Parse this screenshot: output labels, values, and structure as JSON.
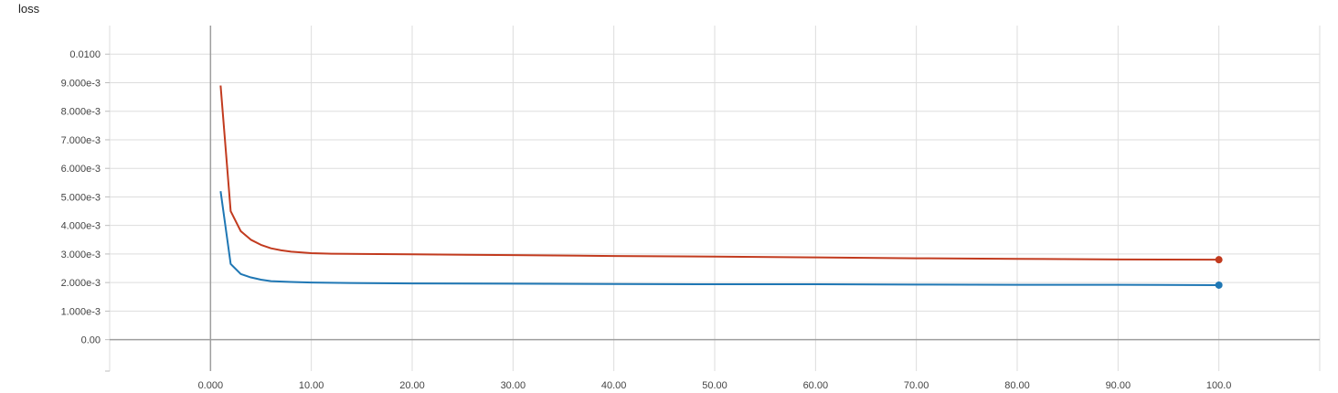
{
  "chart_data": {
    "type": "line",
    "title": "loss",
    "xlabel": "",
    "ylabel": "",
    "grid": true,
    "xlim": [
      -10,
      110
    ],
    "ylim": [
      -0.0011,
      0.011
    ],
    "x_ticks": [
      {
        "value": 0,
        "label": "0.000"
      },
      {
        "value": 10,
        "label": "10.00"
      },
      {
        "value": 20,
        "label": "20.00"
      },
      {
        "value": 30,
        "label": "30.00"
      },
      {
        "value": 40,
        "label": "40.00"
      },
      {
        "value": 50,
        "label": "50.00"
      },
      {
        "value": 60,
        "label": "60.00"
      },
      {
        "value": 70,
        "label": "70.00"
      },
      {
        "value": 80,
        "label": "80.00"
      },
      {
        "value": 90,
        "label": "90.00"
      },
      {
        "value": 100,
        "label": "100.0"
      }
    ],
    "y_ticks": [
      {
        "value": 0.0,
        "label": "0.00"
      },
      {
        "value": 0.001,
        "label": "1.000e-3"
      },
      {
        "value": 0.002,
        "label": "2.000e-3"
      },
      {
        "value": 0.003,
        "label": "3.000e-3"
      },
      {
        "value": 0.004,
        "label": "4.000e-3"
      },
      {
        "value": 0.005,
        "label": "5.000e-3"
      },
      {
        "value": 0.006,
        "label": "6.000e-3"
      },
      {
        "value": 0.007,
        "label": "7.000e-3"
      },
      {
        "value": 0.008,
        "label": "8.000e-3"
      },
      {
        "value": 0.009,
        "label": "9.000e-3"
      },
      {
        "value": 0.01,
        "label": "0.0100"
      }
    ],
    "series": [
      {
        "color": "#c23b1f",
        "points": [
          [
            1,
            0.0089
          ],
          [
            2,
            0.0045
          ],
          [
            3,
            0.0038
          ],
          [
            4,
            0.0035
          ],
          [
            5,
            0.00332
          ],
          [
            6,
            0.0032
          ],
          [
            7,
            0.00313
          ],
          [
            8,
            0.00308
          ],
          [
            10,
            0.00303
          ],
          [
            12,
            0.00301
          ],
          [
            15,
            0.003
          ],
          [
            20,
            0.00299
          ],
          [
            30,
            0.00296
          ],
          [
            40,
            0.00293
          ],
          [
            50,
            0.00291
          ],
          [
            60,
            0.00288
          ],
          [
            70,
            0.00285
          ],
          [
            80,
            0.00283
          ],
          [
            90,
            0.00281
          ],
          [
            100,
            0.0028
          ]
        ]
      },
      {
        "color": "#1f77b4",
        "points": [
          [
            1,
            0.0052
          ],
          [
            2,
            0.00265
          ],
          [
            3,
            0.0023
          ],
          [
            4,
            0.00218
          ],
          [
            5,
            0.0021
          ],
          [
            6,
            0.00205
          ],
          [
            8,
            0.00202
          ],
          [
            10,
            0.002
          ],
          [
            15,
            0.00198
          ],
          [
            20,
            0.00197
          ],
          [
            30,
            0.00196
          ],
          [
            40,
            0.00195
          ],
          [
            50,
            0.00194
          ],
          [
            60,
            0.00194
          ],
          [
            70,
            0.00193
          ],
          [
            80,
            0.00192
          ],
          [
            90,
            0.00192
          ],
          [
            100,
            0.00191
          ]
        ]
      }
    ]
  }
}
